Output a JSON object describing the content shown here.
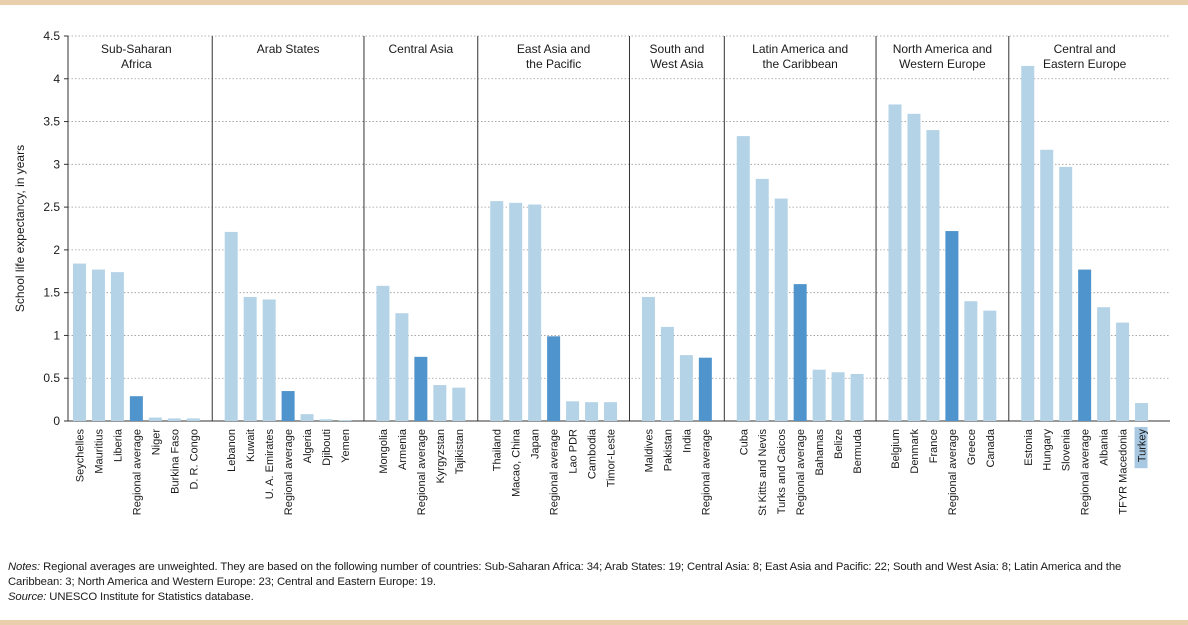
{
  "chart_data": {
    "type": "bar",
    "ylabel": "School life expectancy, in years",
    "ylim": [
      0,
      4.5
    ],
    "yticks": [
      "0",
      "0.5",
      "1",
      "1.5",
      "2",
      "2.5",
      "3",
      "3.5",
      "4",
      "4.5"
    ],
    "grid": "horizontal dotted",
    "colors": {
      "country": "#b4d3e6",
      "regional_average": "#4f94cc",
      "highlight_label_bg": "#a9c9e3"
    },
    "groups": [
      {
        "lines": [
          "Sub-Saharan",
          "Africa"
        ],
        "categories": [
          "Seychelles",
          "Mauritius",
          "Liberia",
          "Regional average",
          "Niger",
          "Burkina Faso",
          "D. R. Congo"
        ],
        "values": [
          1.84,
          1.77,
          1.74,
          0.29,
          0.04,
          0.03,
          0.03
        ]
      },
      {
        "lines": [
          "Arab States"
        ],
        "categories": [
          "Lebanon",
          "Kuwait",
          "U. A. Emirates",
          "Regional average",
          "Algeria",
          "Djibouti",
          "Yemen"
        ],
        "values": [
          2.21,
          1.45,
          1.42,
          0.35,
          0.08,
          0.02,
          0.01
        ]
      },
      {
        "lines": [
          "Central Asia"
        ],
        "categories": [
          "Mongolia",
          "Armenia",
          "Regional average",
          "Kyrgyzstan",
          "Tajikistan"
        ],
        "values": [
          1.58,
          1.26,
          0.75,
          0.42,
          0.39
        ]
      },
      {
        "lines": [
          "East Asia and",
          "the Pacific"
        ],
        "categories": [
          "Thailand",
          "Macao, China",
          "Japan",
          "Regional average",
          "Lao PDR",
          "Cambodia",
          "Timor-Leste"
        ],
        "values": [
          2.57,
          2.55,
          2.53,
          0.99,
          0.23,
          0.22,
          0.22
        ]
      },
      {
        "lines": [
          "South and",
          "West Asia"
        ],
        "categories": [
          "Maldives",
          "Pakistan",
          "India",
          "Regional average"
        ],
        "values": [
          1.45,
          1.1,
          0.77,
          0.74
        ]
      },
      {
        "lines": [
          "Latin America and",
          "the Caribbean"
        ],
        "categories": [
          "Cuba",
          "St Kitts and Nevis",
          "Turks and Caicos",
          "Regional average",
          "Bahamas",
          "Belize",
          "Bermuda"
        ],
        "values": [
          3.33,
          2.83,
          2.6,
          1.6,
          0.6,
          0.57,
          0.55
        ]
      },
      {
        "lines": [
          "North America and",
          "Western Europe"
        ],
        "categories": [
          "Belgium",
          "Denmark",
          "France",
          "Regional average",
          "Greece",
          "Canada"
        ],
        "values": [
          3.7,
          3.59,
          3.4,
          2.22,
          1.4,
          1.29
        ]
      },
      {
        "lines": [
          "Central and",
          "Eastern Europe"
        ],
        "categories": [
          "Estonia",
          "Hungary",
          "Slovenia",
          "Regional average",
          "Albania",
          "TFYR Macedonia",
          "Turkey"
        ],
        "values": [
          4.15,
          3.17,
          2.97,
          1.77,
          1.33,
          1.15,
          0.21
        ]
      }
    ],
    "highlighted_category": "Turkey"
  },
  "notes": {
    "notes_label": "Notes:",
    "notes_text": " Regional averages are unweighted. They are based on the following number of countries: Sub-Saharan Africa: 34; Arab States: 19; Central Asia: 8; East Asia and Pacific: 22; South and West Asia: 8; Latin America and the Caribbean: 3; North America and Western Europe: 23; Central and Eastern Europe: 19.",
    "source_label": "Source:",
    "source_text": " UNESCO Institute for Statistics database."
  }
}
